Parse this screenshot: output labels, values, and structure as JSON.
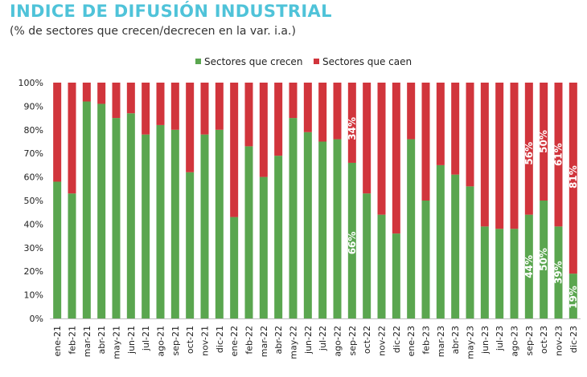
{
  "title": "INDICE DE DIFUSIÓN INDUSTRIAL",
  "subtitle": "(% de sectores que crecen/decrecen en la var. i.a.)",
  "colors": {
    "crecen": "#5aa64f",
    "caen": "#d1353c"
  },
  "chart_data": {
    "type": "bar",
    "stacked": true,
    "categories": [
      "ene-21",
      "feb-21",
      "mar-21",
      "abr-21",
      "may-21",
      "jun-21",
      "jul-21",
      "ago-21",
      "sep-21",
      "oct-21",
      "nov-21",
      "dic-21",
      "ene-22",
      "feb-22",
      "mar-22",
      "abr-22",
      "may-22",
      "jun-22",
      "jul-22",
      "ago-22",
      "sep-22",
      "oct-22",
      "nov-22",
      "dic-22",
      "ene-23",
      "feb-23",
      "mar-23",
      "abr-23",
      "may-23",
      "jun-23",
      "jul-23",
      "ago-23",
      "sep-23",
      "oct-23",
      "nov-23",
      "dic-23"
    ],
    "series": [
      {
        "name": "Sectores que crecen",
        "values": [
          58,
          53,
          92,
          91,
          85,
          87,
          78,
          82,
          80,
          62,
          78,
          80,
          43,
          73,
          60,
          69,
          85,
          79,
          75,
          76,
          66,
          53,
          44,
          36,
          76,
          50,
          65,
          61,
          56,
          39,
          38,
          38,
          44,
          50,
          39,
          19
        ]
      },
      {
        "name": "Sectores que caen",
        "values": [
          42,
          47,
          8,
          9,
          15,
          13,
          22,
          18,
          20,
          38,
          22,
          20,
          57,
          27,
          40,
          31,
          15,
          21,
          25,
          24,
          34,
          47,
          56,
          64,
          24,
          50,
          35,
          39,
          44,
          61,
          62,
          62,
          56,
          50,
          61,
          81
        ]
      }
    ],
    "data_labels": [
      {
        "category": "sep-22",
        "series": "Sectores que crecen",
        "text": "66%"
      },
      {
        "category": "sep-22",
        "series": "Sectores que caen",
        "text": "34%"
      },
      {
        "category": "sep-23",
        "series": "Sectores que crecen",
        "text": "44%"
      },
      {
        "category": "sep-23",
        "series": "Sectores que caen",
        "text": "56%"
      },
      {
        "category": "oct-23",
        "series": "Sectores que crecen",
        "text": "50%"
      },
      {
        "category": "oct-23",
        "series": "Sectores que caen",
        "text": "50%"
      },
      {
        "category": "nov-23",
        "series": "Sectores que crecen",
        "text": "39%"
      },
      {
        "category": "nov-23",
        "series": "Sectores que caen",
        "text": "61%"
      },
      {
        "category": "dic-23",
        "series": "Sectores que crecen",
        "text": "19%"
      },
      {
        "category": "dic-23",
        "series": "Sectores que caen",
        "text": "81%"
      }
    ],
    "y_ticks": [
      "0%",
      "10%",
      "20%",
      "30%",
      "40%",
      "50%",
      "60%",
      "70%",
      "80%",
      "90%",
      "100%"
    ],
    "ylim": [
      0,
      100
    ],
    "legend_position": "top-center",
    "grid": false
  }
}
